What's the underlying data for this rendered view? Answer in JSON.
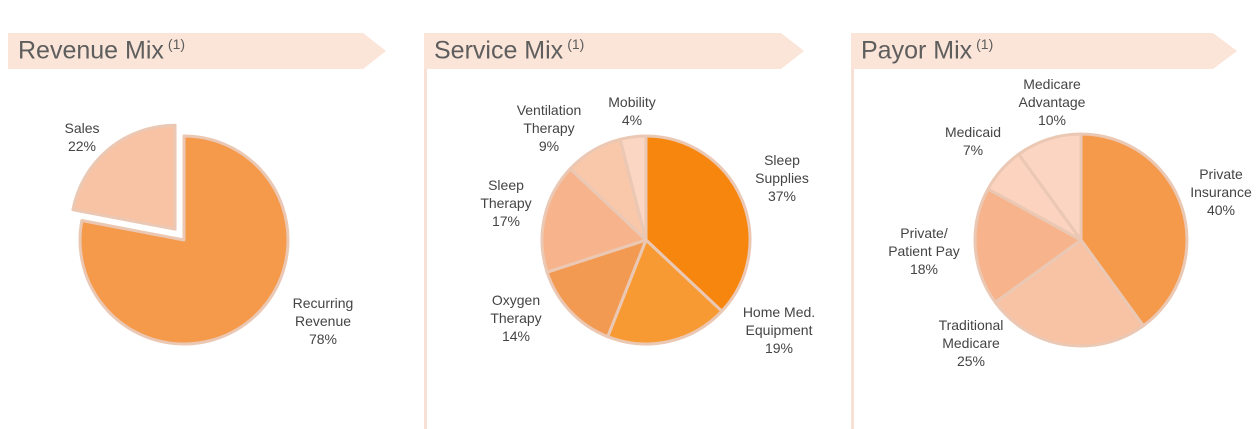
{
  "chart_data": [
    {
      "type": "pie",
      "title": "Revenue Mix",
      "footnote_marker": "(1)",
      "slices": [
        {
          "label_lines": [
            "Recurring",
            "Revenue"
          ],
          "value": 78,
          "value_label": "78%",
          "color": "#f5994a",
          "exploded": false
        },
        {
          "label_lines": [
            "Sales"
          ],
          "value": 22,
          "value_label": "22%",
          "color": "#f8c3a5",
          "exploded": true
        }
      ]
    },
    {
      "type": "pie",
      "title": "Service Mix",
      "footnote_marker": "(1)",
      "slices": [
        {
          "label_lines": [
            "Sleep",
            "Supplies"
          ],
          "value": 37,
          "value_label": "37%",
          "color": "#f7860f"
        },
        {
          "label_lines": [
            "Home Med.",
            "Equipment"
          ],
          "value": 19,
          "value_label": "19%",
          "color": "#f89a33"
        },
        {
          "label_lines": [
            "Oxygen",
            "Therapy"
          ],
          "value": 14,
          "value_label": "14%",
          "color": "#f39a52"
        },
        {
          "label_lines": [
            "Sleep",
            "Therapy"
          ],
          "value": 17,
          "value_label": "17%",
          "color": "#f7b48c"
        },
        {
          "label_lines": [
            "Ventilation",
            "Therapy"
          ],
          "value": 9,
          "value_label": "9%",
          "color": "#f9c7aa"
        },
        {
          "label_lines": [
            "Mobility"
          ],
          "value": 4,
          "value_label": "4%",
          "color": "#fad6c3"
        }
      ]
    },
    {
      "type": "pie",
      "title": "Payor Mix",
      "footnote_marker": "(1)",
      "slices": [
        {
          "label_lines": [
            "Private",
            "Insurance"
          ],
          "value": 40,
          "value_label": "40%",
          "color": "#f5994a"
        },
        {
          "label_lines": [
            "Traditional",
            "Medicare"
          ],
          "value": 25,
          "value_label": "25%",
          "color": "#f8c3a5"
        },
        {
          "label_lines": [
            "Private/",
            "Patient Pay"
          ],
          "value": 18,
          "value_label": "18%",
          "color": "#f7b48c"
        },
        {
          "label_lines": [
            "Medicaid"
          ],
          "value": 7,
          "value_label": "7%",
          "color": "#fbd3bf"
        },
        {
          "label_lines": [
            "Medicare",
            "Advantage"
          ],
          "value": 10,
          "value_label": "10%",
          "color": "#fbd5c2"
        }
      ]
    }
  ]
}
